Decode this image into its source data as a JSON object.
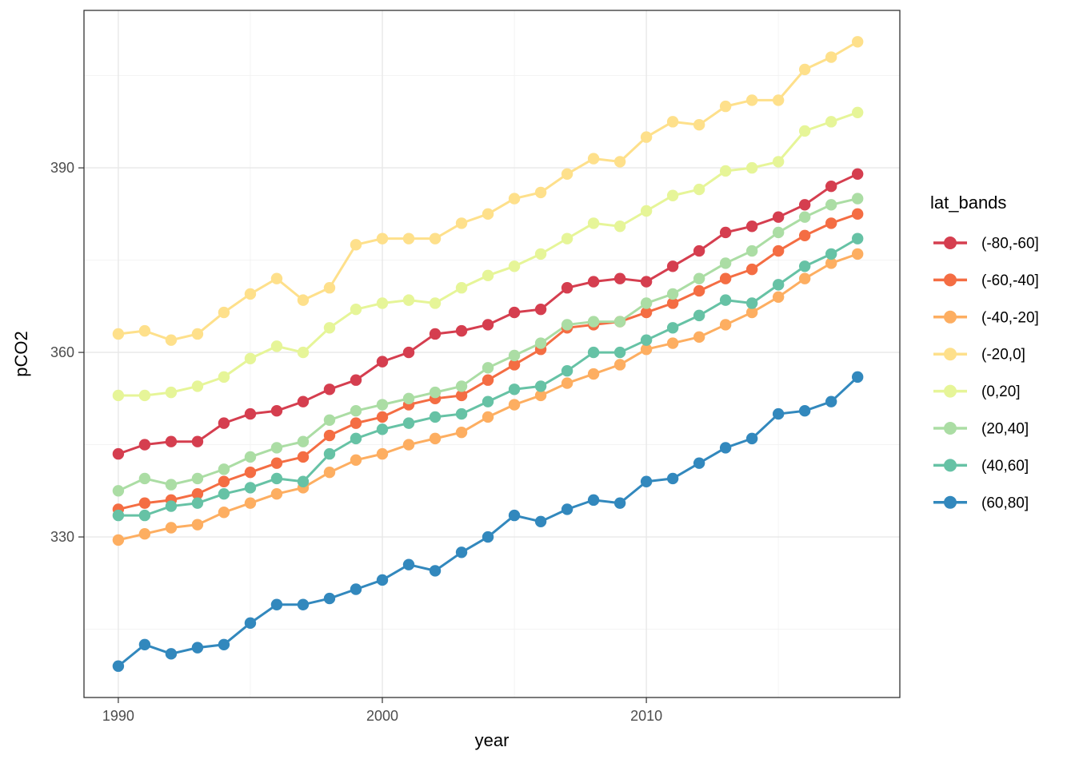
{
  "figure": {
    "background": "#ffffff",
    "panel": {
      "border_color": "#333333",
      "grid_major_color": "#e8e8e8",
      "grid_minor_color": "#f2f2f2",
      "tick_color": "#333333",
      "tick_label_color": "#4d4d4d"
    },
    "x_axis_title": "year",
    "y_axis_title": "pCO2",
    "legend_title": "lat_bands"
  },
  "chart_data": {
    "type": "line",
    "title": "",
    "xlabel": "year",
    "ylabel": "pCO2",
    "legend_title": "lat_bands",
    "legend_position": "right",
    "grid": true,
    "x_ticks": [
      1990,
      2000,
      2010
    ],
    "x_minor_ticks": [
      1995,
      2005,
      2015
    ],
    "y_ticks": [
      330,
      360,
      390
    ],
    "y_minor_ticks": [
      315,
      345,
      375,
      405
    ],
    "xlim": [
      1988.7,
      2019.6
    ],
    "ylim": [
      303.9,
      415.6
    ],
    "x": [
      1990,
      1991,
      1992,
      1993,
      1994,
      1995,
      1996,
      1997,
      1998,
      1999,
      2000,
      2001,
      2002,
      2003,
      2004,
      2005,
      2006,
      2007,
      2008,
      2009,
      2010,
      2011,
      2012,
      2013,
      2014,
      2015,
      2016,
      2017,
      2018
    ],
    "series": [
      {
        "name": "(-80,-60]",
        "color": "#d53e4f",
        "values": [
          343.5,
          345,
          345.5,
          345.5,
          348.5,
          350,
          350.5,
          352,
          354,
          355.5,
          358.5,
          360,
          363,
          363.5,
          364.5,
          366.5,
          367,
          370.5,
          371.5,
          372,
          371.5,
          374,
          376.5,
          379.5,
          380.5,
          382,
          384,
          387,
          389
        ]
      },
      {
        "name": "(-60,-40]",
        "color": "#f46d43",
        "values": [
          334.5,
          335.5,
          336,
          337,
          339,
          340.5,
          342,
          343,
          346.5,
          348.5,
          349.5,
          351.5,
          352.5,
          353,
          355.5,
          358,
          360.5,
          364,
          364.5,
          365,
          366.5,
          368,
          370,
          372,
          373.5,
          376.5,
          379,
          381,
          382.5
        ]
      },
      {
        "name": "(-40,-20]",
        "color": "#fdae61",
        "values": [
          329.5,
          330.5,
          331.5,
          332,
          334,
          335.5,
          337,
          338,
          340.5,
          342.5,
          343.5,
          345,
          346,
          347,
          349.5,
          351.5,
          353,
          355,
          356.5,
          358,
          360.5,
          361.5,
          362.5,
          364.5,
          366.5,
          369,
          372,
          374.5,
          376
        ]
      },
      {
        "name": "(-20,0]",
        "color": "#fee08b",
        "values": [
          363,
          363.5,
          362,
          363,
          366.5,
          369.5,
          372,
          368.5,
          370.5,
          377.5,
          378.5,
          378.5,
          378.5,
          381,
          382.5,
          385,
          386,
          389,
          391.5,
          391,
          395,
          397.5,
          397,
          400,
          401,
          401,
          406,
          408,
          410.5
        ]
      },
      {
        "name": "(0,20]",
        "color": "#e6f598",
        "values": [
          353,
          353,
          353.5,
          354.5,
          356,
          359,
          361,
          360,
          364,
          367,
          368,
          368.5,
          368,
          370.5,
          372.5,
          374,
          376,
          378.5,
          381,
          380.5,
          383,
          385.5,
          386.5,
          389.5,
          390,
          391,
          396,
          397.5,
          399
        ]
      },
      {
        "name": "(20,40]",
        "color": "#abdda4",
        "values": [
          337.5,
          339.5,
          338.5,
          339.5,
          341,
          343,
          344.5,
          345.5,
          349,
          350.5,
          351.5,
          352.5,
          353.5,
          354.5,
          357.5,
          359.5,
          361.5,
          364.5,
          365,
          365,
          368,
          369.5,
          372,
          374.5,
          376.5,
          379.5,
          382,
          384,
          385
        ]
      },
      {
        "name": "(40,60]",
        "color": "#66c2a5",
        "values": [
          333.5,
          333.5,
          335,
          335.5,
          337,
          338,
          339.5,
          339,
          343.5,
          346,
          347.5,
          348.5,
          349.5,
          350,
          352,
          354,
          354.5,
          357,
          360,
          360,
          362,
          364,
          366,
          368.5,
          368,
          371,
          374,
          376,
          378.5
        ]
      },
      {
        "name": "(60,80]",
        "color": "#3288bd",
        "values": [
          309,
          312.5,
          311,
          312,
          312.5,
          316,
          319,
          319,
          320,
          321.5,
          323,
          325.5,
          324.5,
          327.5,
          330,
          333.5,
          332.5,
          334.5,
          336,
          335.5,
          339,
          339.5,
          342,
          344.5,
          346,
          350,
          350.5,
          352,
          356
        ]
      }
    ]
  }
}
